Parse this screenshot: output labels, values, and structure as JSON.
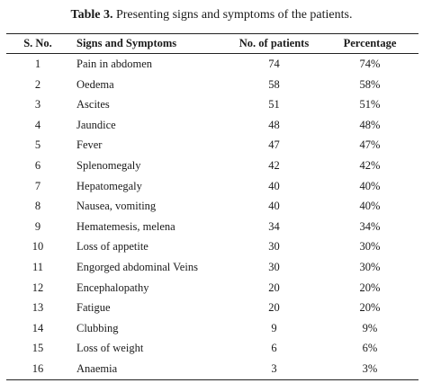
{
  "caption": {
    "label": "Table 3.",
    "text": " Presenting signs and symptoms of the patients."
  },
  "columns": [
    "S. No.",
    "Signs and Symptoms",
    "No. of patients",
    "Percentage"
  ],
  "rows": [
    {
      "sno": "1",
      "sign": "Pain in abdomen",
      "patients": "74",
      "percentage": "74%"
    },
    {
      "sno": "2",
      "sign": "Oedema",
      "patients": "58",
      "percentage": "58%"
    },
    {
      "sno": "3",
      "sign": "Ascites",
      "patients": "51",
      "percentage": "51%"
    },
    {
      "sno": "4",
      "sign": "Jaundice",
      "patients": "48",
      "percentage": "48%"
    },
    {
      "sno": "5",
      "sign": "Fever",
      "patients": "47",
      "percentage": "47%"
    },
    {
      "sno": "6",
      "sign": "Splenomegaly",
      "patients": "42",
      "percentage": "42%"
    },
    {
      "sno": "7",
      "sign": "Hepatomegaly",
      "patients": "40",
      "percentage": "40%"
    },
    {
      "sno": "8",
      "sign": "Nausea, vomiting",
      "patients": "40",
      "percentage": "40%"
    },
    {
      "sno": "9",
      "sign": "Hematemesis, melena",
      "patients": "34",
      "percentage": "34%"
    },
    {
      "sno": "10",
      "sign": "Loss of appetite",
      "patients": "30",
      "percentage": "30%"
    },
    {
      "sno": "11",
      "sign": "Engorged abdominal Veins",
      "patients": "30",
      "percentage": "30%"
    },
    {
      "sno": "12",
      "sign": "Encephalopathy",
      "patients": "20",
      "percentage": "20%"
    },
    {
      "sno": "13",
      "sign": "Fatigue",
      "patients": "20",
      "percentage": "20%"
    },
    {
      "sno": "14",
      "sign": "Clubbing",
      "patients": "9",
      "percentage": "9%"
    },
    {
      "sno": "15",
      "sign": "Loss of weight",
      "patients": "6",
      "percentage": "6%"
    },
    {
      "sno": "16",
      "sign": "Anaemia",
      "patients": "3",
      "percentage": "3%"
    }
  ]
}
